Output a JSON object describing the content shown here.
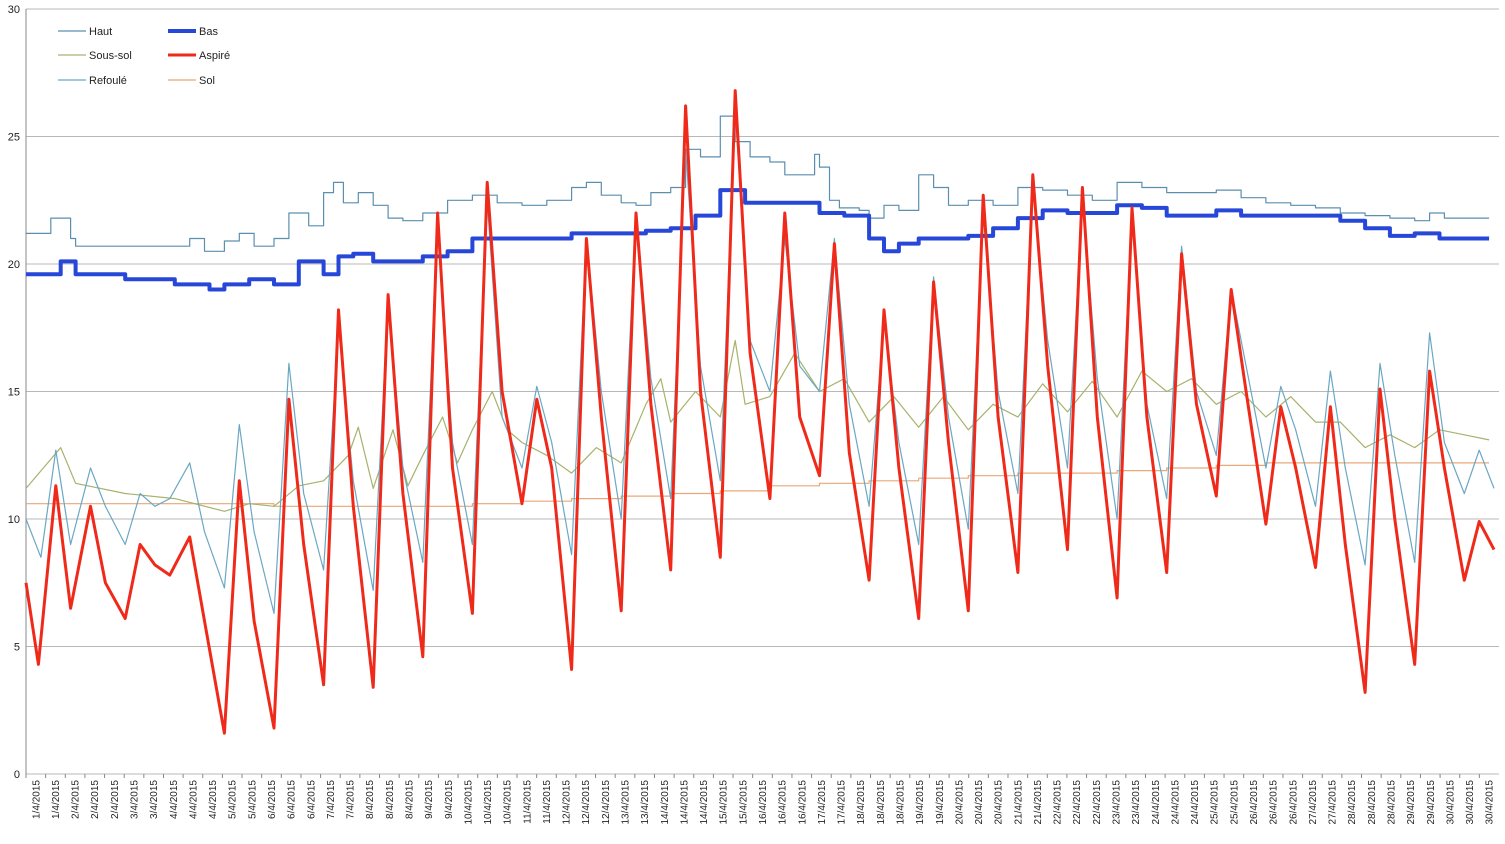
{
  "chart_data": {
    "type": "line",
    "title": "",
    "xlabel": "",
    "ylabel": "",
    "ylim": [
      0,
      30
    ],
    "yticks": [
      0,
      5,
      10,
      15,
      20,
      25,
      30
    ],
    "grid": "horizontal",
    "legend_placement": "top-left",
    "x_ticks": [
      "1/4/2015",
      "1/4/2015",
      "2/4/2015",
      "2/4/2015",
      "2/4/2015",
      "3/4/2015",
      "3/4/2015",
      "4/4/2015",
      "4/4/2015",
      "4/4/2015",
      "5/4/2015",
      "5/4/2015",
      "6/4/2015",
      "6/4/2015",
      "6/4/2015",
      "7/4/2015",
      "7/4/2015",
      "8/4/2015",
      "8/4/2015",
      "8/4/2015",
      "9/4/2015",
      "9/4/2015",
      "10/4/2015",
      "10/4/2015",
      "10/4/2015",
      "11/4/2015",
      "11/4/2015",
      "12/4/2015",
      "12/4/2015",
      "12/4/2015",
      "13/4/2015",
      "13/4/2015",
      "14/4/2015",
      "14/4/2015",
      "14/4/2015",
      "15/4/2015",
      "15/4/2015",
      "16/4/2015",
      "16/4/2015",
      "16/4/2015",
      "17/4/2015",
      "17/4/2015",
      "18/4/2015",
      "18/4/2015",
      "18/4/2015",
      "19/4/2015",
      "19/4/2015",
      "20/4/2015",
      "20/4/2015",
      "20/4/2015",
      "21/4/2015",
      "21/4/2015",
      "22/4/2015",
      "22/4/2015",
      "22/4/2015",
      "23/4/2015",
      "23/4/2015",
      "24/4/2015",
      "24/4/2015",
      "24/4/2015",
      "25/4/2015",
      "25/4/2015",
      "26/4/2015",
      "26/4/2015",
      "26/4/2015",
      "27/4/2015",
      "27/4/2015",
      "28/4/2015",
      "28/4/2015",
      "28/4/2015",
      "29/4/2015",
      "29/4/2015",
      "30/4/2015",
      "30/4/2015",
      "30/4/2015"
    ],
    "series": [
      {
        "name": "Haut",
        "color": "#5b8fb0",
        "width": 1.2,
        "style": "step",
        "x": [
          1,
          1.5,
          1.9,
          2,
          2.5,
          4,
          4.3,
          4.6,
          5,
          5.3,
          5.6,
          6,
          6.3,
          6.7,
          7,
          7.2,
          7.4,
          7.7,
          8,
          8.3,
          8.6,
          9,
          9.5,
          10,
          10.5,
          11,
          11.5,
          12,
          12.3,
          12.6,
          13,
          13.3,
          13.6,
          14,
          14.3,
          14.6,
          15,
          15.3,
          15.6,
          16,
          16.3,
          16.6,
          16.9,
          17,
          17.2,
          17.4,
          17.8,
          18,
          18.3,
          18.6,
          19,
          19.3,
          19.6,
          20,
          20.5,
          21,
          21.5,
          22,
          22.5,
          23,
          23.5,
          24,
          24.5,
          25,
          25.5,
          26,
          26.5,
          27,
          27.5,
          28,
          28.5,
          29,
          29.3,
          29.6,
          30,
          30.5
        ],
        "y": [
          21.2,
          21.8,
          21,
          20.7,
          20.7,
          20.7,
          21,
          20.5,
          20.9,
          21.2,
          20.7,
          21,
          22,
          21.5,
          22.8,
          23.2,
          22.4,
          22.8,
          22.3,
          21.8,
          21.7,
          22,
          22.5,
          22.7,
          22.4,
          22.3,
          22.5,
          23,
          23.2,
          22.7,
          22.4,
          22.3,
          22.8,
          23,
          24.5,
          24.2,
          25.8,
          24.8,
          24.2,
          24,
          23.5,
          23.5,
          24.3,
          23.8,
          22.5,
          22.2,
          22.1,
          21.8,
          22.3,
          22.1,
          23.5,
          23,
          22.3,
          22.5,
          22.3,
          23,
          22.9,
          22.7,
          22.5,
          23.2,
          23,
          22.8,
          22.8,
          22.9,
          22.6,
          22.4,
          22.3,
          22.2,
          22,
          21.9,
          21.8,
          21.7,
          22,
          21.8,
          21.8,
          21.8
        ]
      },
      {
        "name": "Bas",
        "color": "#2747d8",
        "width": 4,
        "style": "step",
        "x": [
          1,
          1.7,
          2,
          3,
          4,
          4.7,
          5,
          5.5,
          6,
          6.5,
          7,
          7.3,
          7.6,
          8,
          8.5,
          9,
          9.5,
          10,
          10.5,
          11,
          11.5,
          12,
          12.5,
          13,
          13.5,
          14,
          14.5,
          15,
          15.5,
          16,
          16.5,
          17,
          17.5,
          18,
          18.3,
          18.6,
          19,
          19.5,
          20,
          20.5,
          21,
          21.5,
          22,
          22.5,
          23,
          23.5,
          24,
          24.5,
          25,
          25.5,
          26,
          26.5,
          27,
          27.5,
          28,
          28.5,
          29,
          29.5,
          30,
          30.5
        ],
        "y": [
          19.6,
          20.1,
          19.6,
          19.4,
          19.2,
          19.0,
          19.2,
          19.4,
          19.2,
          20.1,
          19.6,
          20.3,
          20.4,
          20.1,
          20.1,
          20.3,
          20.5,
          21.0,
          21.0,
          21.0,
          21.0,
          21.2,
          21.2,
          21.2,
          21.3,
          21.4,
          21.9,
          22.9,
          22.4,
          22.4,
          22.4,
          22.0,
          21.9,
          21.0,
          20.5,
          20.8,
          21.0,
          21.0,
          21.1,
          21.4,
          21.8,
          22.1,
          22.0,
          22.0,
          22.3,
          22.2,
          21.9,
          21.9,
          22.1,
          21.9,
          21.9,
          21.9,
          21.9,
          21.7,
          21.4,
          21.1,
          21.2,
          21.0,
          21.0,
          21.0
        ]
      },
      {
        "name": "Sous-sol",
        "color": "#a7b26c",
        "width": 1.2,
        "style": "line",
        "x": [
          1,
          1.7,
          2,
          3,
          4,
          5,
          5.5,
          6,
          6.5,
          7,
          7.5,
          7.7,
          8,
          8.4,
          8.7,
          9,
          9.4,
          9.7,
          10,
          10.4,
          10.7,
          11,
          11.5,
          12,
          12.5,
          13,
          13.5,
          13.8,
          14,
          14.5,
          15,
          15.3,
          15.5,
          16,
          16.5,
          17,
          17.5,
          18,
          18.5,
          19,
          19.5,
          20,
          20.5,
          21,
          21.5,
          22,
          22.5,
          23,
          23.5,
          24,
          24.5,
          25,
          25.5,
          26,
          26.5,
          27,
          27.5,
          28,
          28.5,
          29,
          29.5,
          30,
          30.5
        ],
        "y": [
          11.2,
          12.8,
          11.4,
          11.0,
          10.8,
          10.3,
          10.6,
          10.5,
          11.3,
          11.5,
          12.5,
          13.6,
          11.2,
          13.5,
          11.3,
          12.5,
          14.0,
          12.2,
          13.5,
          15.0,
          13.5,
          13.0,
          12.5,
          11.8,
          12.8,
          12.2,
          14.5,
          15.5,
          13.8,
          15.0,
          14.0,
          17.0,
          14.5,
          14.8,
          16.5,
          15.0,
          15.5,
          13.8,
          14.8,
          13.6,
          14.8,
          13.5,
          14.5,
          14.0,
          15.3,
          14.2,
          15.4,
          14.0,
          15.8,
          15.0,
          15.5,
          14.5,
          15.0,
          14.0,
          14.8,
          13.8,
          13.8,
          12.8,
          13.3,
          12.8,
          13.5,
          13.3,
          13.1
        ]
      },
      {
        "name": "Aspiré",
        "color": "#f02a1a",
        "width": 3,
        "style": "line",
        "x": [
          1,
          1.25,
          1.6,
          1.9,
          2.3,
          2.6,
          3,
          3.3,
          3.6,
          3.9,
          4.3,
          4.6,
          5,
          5.3,
          5.6,
          6,
          6.3,
          6.6,
          7,
          7.3,
          7.6,
          8,
          8.3,
          8.6,
          9,
          9.3,
          9.6,
          10,
          10.3,
          10.6,
          11,
          11.3,
          11.6,
          12,
          12.3,
          12.6,
          13,
          13.3,
          13.6,
          14,
          14.3,
          14.6,
          15,
          15.3,
          15.6,
          16,
          16.3,
          16.6,
          17,
          17.3,
          17.6,
          18,
          18.3,
          18.6,
          19,
          19.3,
          19.6,
          20,
          20.3,
          20.6,
          21,
          21.3,
          21.6,
          22,
          22.3,
          22.6,
          23,
          23.3,
          23.6,
          24,
          24.3,
          24.6,
          25,
          25.3,
          25.6,
          26,
          26.3,
          26.6,
          27,
          27.3,
          27.6,
          28,
          28.3,
          28.6,
          29,
          29.3,
          29.6,
          30,
          30.3,
          30.6
        ],
        "y": [
          7.5,
          4.3,
          11.3,
          6.5,
          10.5,
          7.5,
          6.1,
          9.0,
          8.2,
          7.8,
          9.3,
          6.0,
          1.6,
          11.5,
          6.0,
          1.8,
          14.7,
          9.0,
          3.5,
          18.2,
          10.5,
          3.4,
          18.8,
          11.0,
          4.6,
          22.0,
          12.0,
          6.3,
          23.2,
          15.0,
          10.6,
          14.7,
          12.0,
          4.1,
          21.0,
          14.0,
          6.4,
          22.0,
          14.5,
          8.0,
          26.2,
          15.0,
          8.5,
          26.8,
          16.5,
          10.8,
          22.0,
          14.0,
          11.7,
          20.8,
          12.6,
          7.6,
          18.2,
          12.0,
          6.1,
          19.3,
          13.0,
          6.4,
          22.7,
          14.0,
          7.9,
          23.5,
          16.0,
          8.8,
          23.0,
          14.0,
          6.9,
          22.2,
          14.0,
          7.9,
          20.4,
          14.5,
          10.9,
          19.0,
          15.0,
          9.8,
          14.4,
          12.0,
          8.1,
          14.4,
          9.0,
          3.2,
          15.1,
          10.0,
          4.3,
          15.8,
          12.0,
          7.6,
          9.9,
          8.8
        ]
      },
      {
        "name": "Refoulé",
        "color": "#6ba7c4",
        "width": 1.2,
        "style": "line",
        "x": [
          1,
          1.3,
          1.6,
          1.9,
          2.3,
          2.6,
          3,
          3.3,
          3.6,
          3.9,
          4.3,
          4.6,
          5,
          5.3,
          5.6,
          6,
          6.3,
          6.6,
          7,
          7.3,
          7.6,
          8,
          8.3,
          8.6,
          9,
          9.3,
          9.6,
          10,
          10.3,
          10.6,
          11,
          11.3,
          11.6,
          12,
          12.3,
          12.6,
          13,
          13.3,
          13.6,
          14,
          14.3,
          14.6,
          15,
          15.3,
          15.6,
          16,
          16.3,
          16.6,
          17,
          17.3,
          17.6,
          18,
          18.3,
          18.6,
          19,
          19.3,
          19.6,
          20,
          20.3,
          20.6,
          21,
          21.3,
          21.6,
          22,
          22.3,
          22.6,
          23,
          23.3,
          23.6,
          24,
          24.3,
          24.6,
          25,
          25.3,
          25.6,
          26,
          26.3,
          26.6,
          27,
          27.3,
          27.6,
          28,
          28.3,
          28.6,
          29,
          29.3,
          29.6,
          30,
          30.3,
          30.6
        ],
        "y": [
          10.0,
          8.5,
          12.7,
          9.0,
          12.0,
          10.5,
          9.0,
          11.0,
          10.5,
          10.8,
          12.2,
          9.5,
          7.3,
          13.7,
          9.5,
          6.3,
          16.1,
          11.0,
          8.0,
          17.5,
          11.5,
          7.2,
          18.5,
          12.0,
          8.3,
          21.5,
          13.0,
          9.0,
          22.5,
          14.0,
          12.0,
          15.2,
          13.0,
          8.6,
          21.0,
          15.0,
          10.0,
          22.0,
          15.5,
          10.8,
          24.5,
          16.0,
          11.5,
          26.0,
          17.0,
          15.0,
          21.0,
          16.0,
          15.0,
          21.0,
          14.5,
          10.5,
          17.8,
          13.0,
          9.0,
          19.5,
          14.0,
          9.6,
          22.0,
          15.0,
          11.0,
          23.0,
          17.0,
          12.0,
          22.5,
          15.5,
          10.0,
          22.0,
          14.5,
          10.8,
          20.7,
          15.0,
          12.5,
          19.0,
          16.0,
          12.0,
          15.2,
          13.5,
          10.5,
          15.8,
          12.0,
          8.2,
          16.1,
          12.5,
          8.3,
          17.3,
          13.0,
          11.0,
          12.7,
          11.2
        ]
      },
      {
        "name": "Sol",
        "color": "#e8a878",
        "width": 1.2,
        "style": "step",
        "x": [
          1,
          2,
          4,
          6,
          7,
          8,
          10,
          11,
          12,
          13,
          14,
          15,
          16,
          17,
          18,
          19,
          20,
          21,
          22,
          23,
          24,
          25,
          26,
          27,
          28,
          29,
          30,
          30.5
        ],
        "y": [
          10.6,
          10.6,
          10.6,
          10.5,
          10.5,
          10.5,
          10.6,
          10.7,
          10.8,
          10.9,
          11.0,
          11.1,
          11.3,
          11.4,
          11.5,
          11.6,
          11.7,
          11.8,
          11.8,
          11.9,
          12.0,
          12.1,
          12.2,
          12.2,
          12.2,
          12.2,
          12.2,
          12.2
        ]
      }
    ]
  }
}
